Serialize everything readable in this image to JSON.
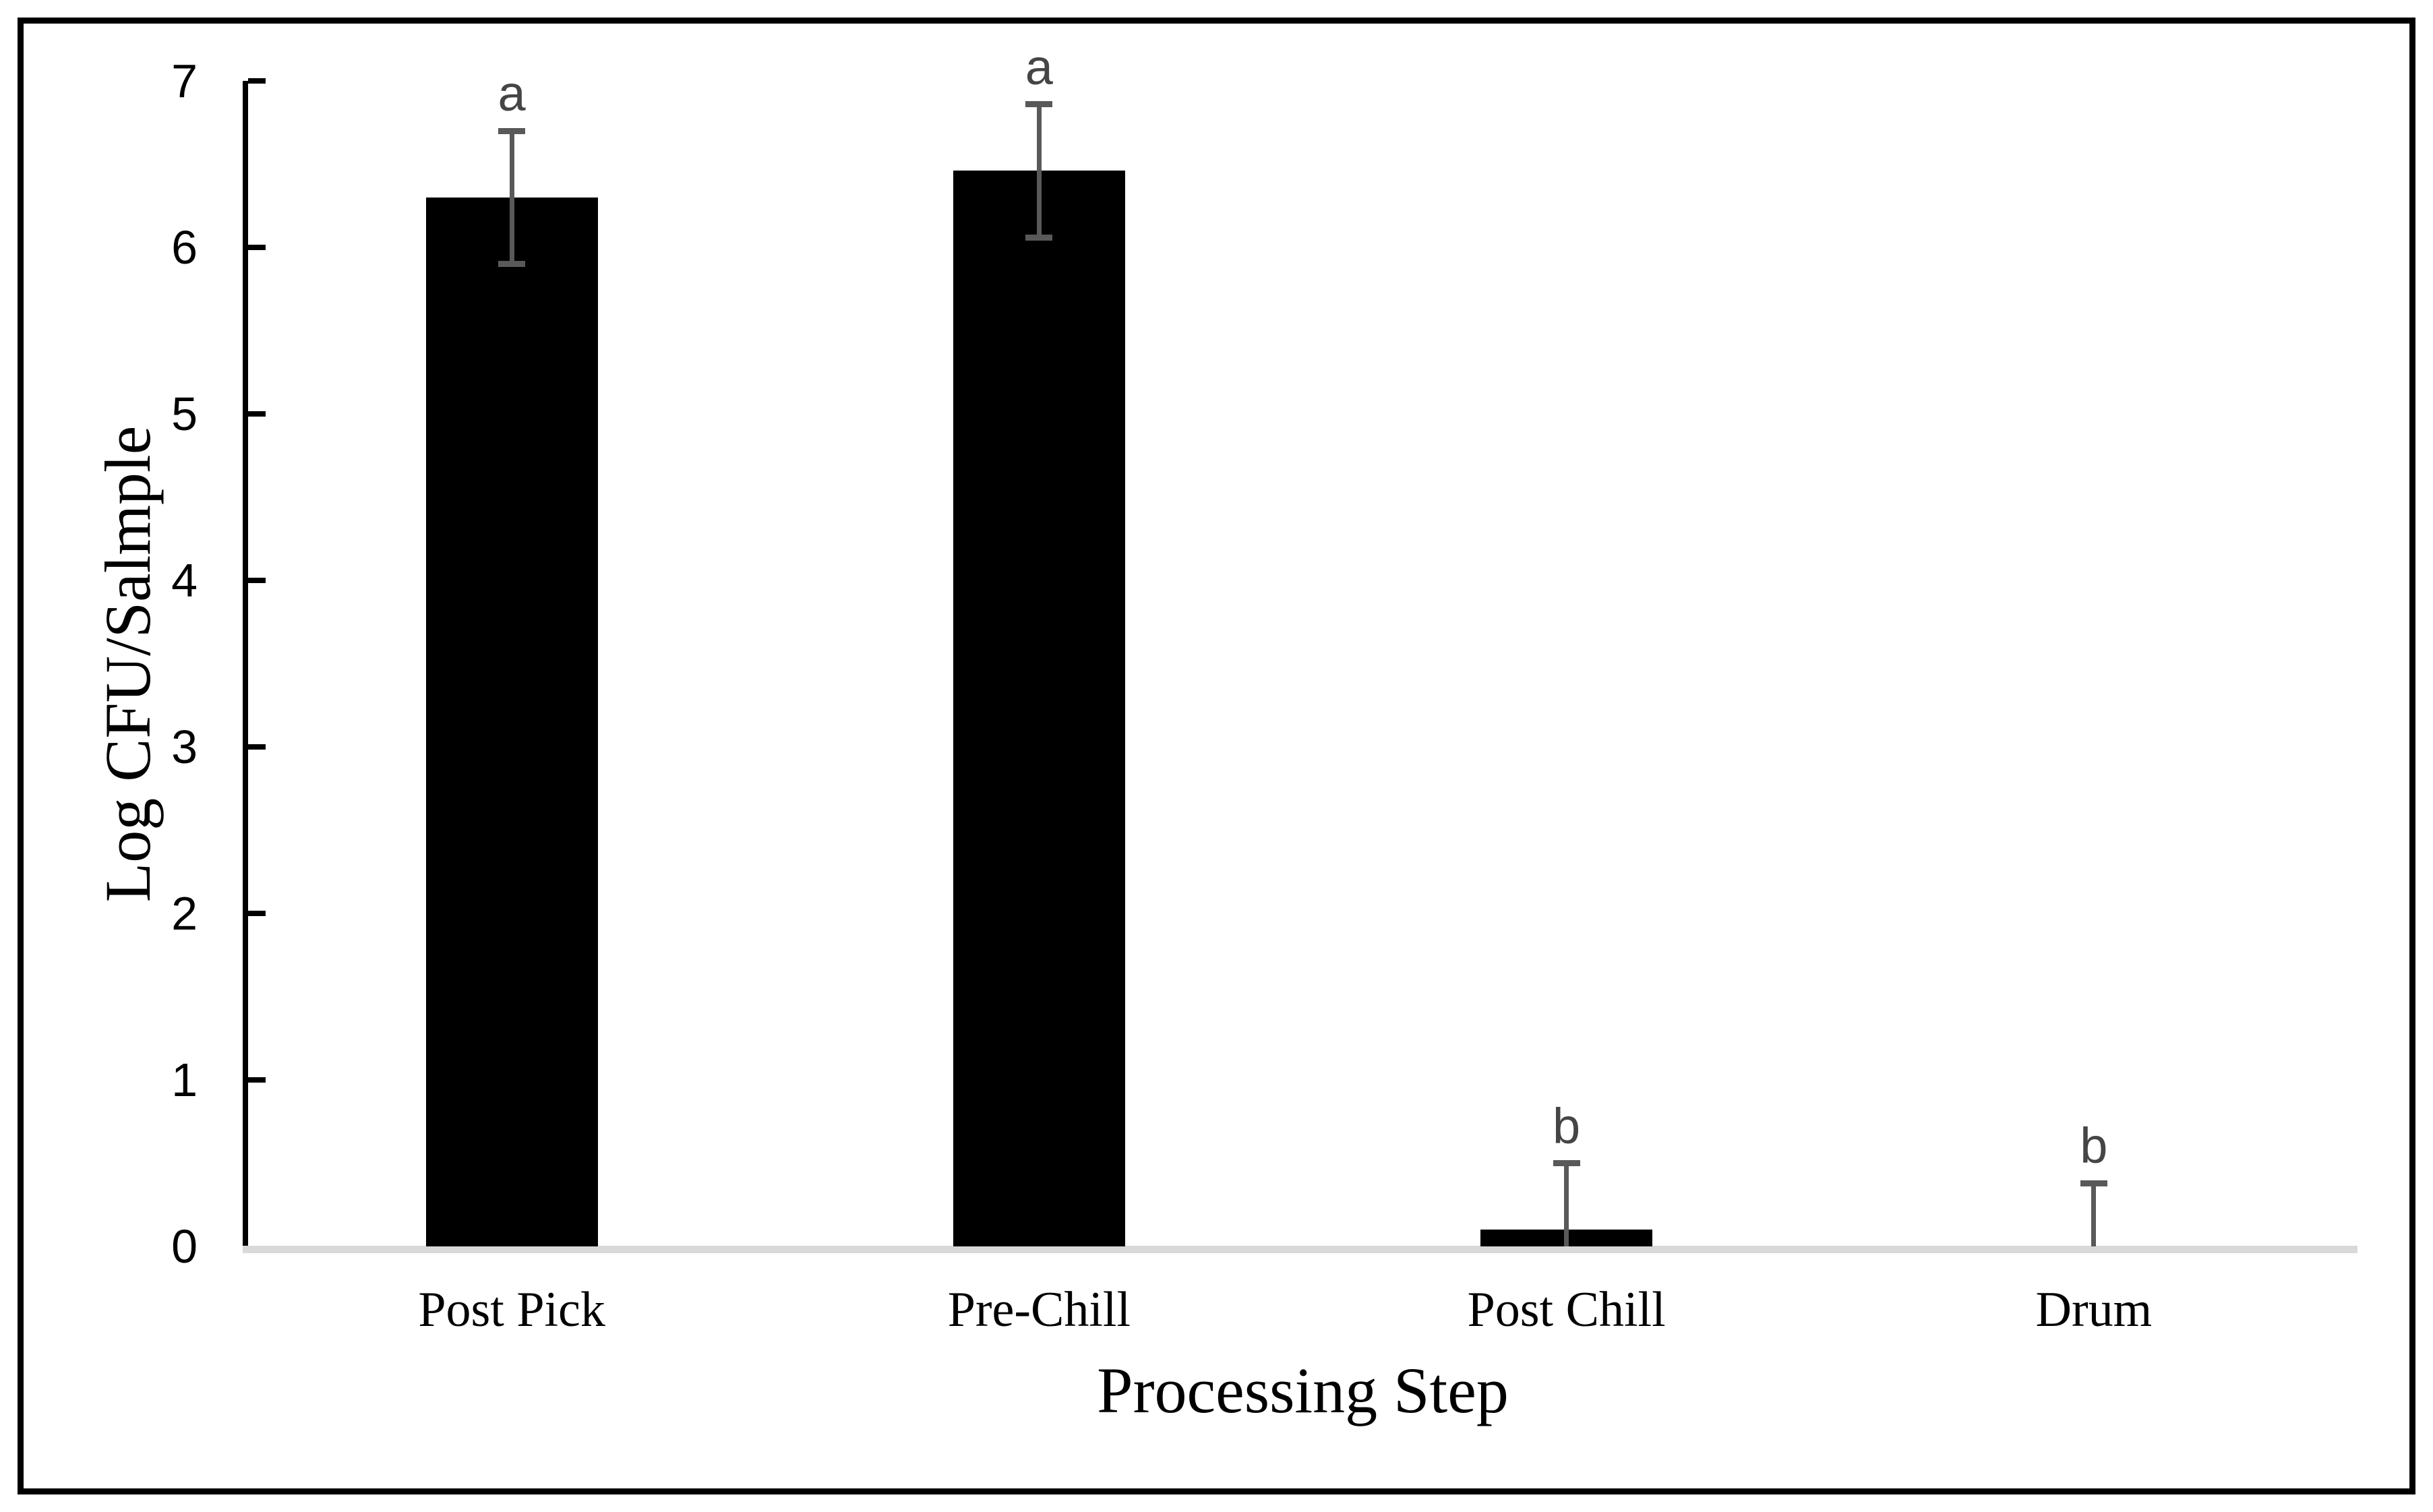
{
  "figure": {
    "background": "#ffffff",
    "frame_color": "#000000"
  },
  "chart_data": {
    "type": "bar",
    "title": "",
    "categories": [
      "Post Pick",
      "Pre-Chill",
      "Post Chill",
      "Drum"
    ],
    "values": [
      6.3,
      6.46,
      0.1,
      0
    ],
    "errors_up": [
      0.4,
      0.4,
      0.4,
      0.38
    ],
    "errors_down": [
      0.4,
      0.4,
      0.1,
      0
    ],
    "lower_caps": [
      true,
      true,
      false,
      false
    ],
    "sig_letters": [
      "a",
      "a",
      "b",
      "b"
    ],
    "xlabel": "Processing Step",
    "ylabel": "Log CFU/Salmple",
    "ylim": [
      0,
      7
    ],
    "yticks": [
      "0",
      "1",
      "2",
      "3",
      "4",
      "5",
      "6",
      "7"
    ],
    "grid": "off",
    "legend": "none",
    "bar_color": "#000000",
    "error_bar_color": "#595959",
    "sig_letter_color": "#454545",
    "axis_line_color": "#000000",
    "baseline_color": "#d9d9d9",
    "tick_label_color": "#000000"
  }
}
